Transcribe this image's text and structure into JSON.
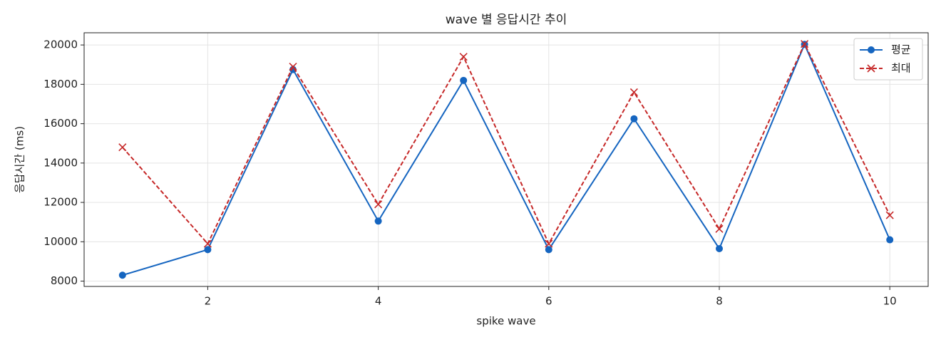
{
  "chart_data": {
    "type": "line",
    "title": "wave 별 응답시간 추이",
    "x_label": "spike wave",
    "y_label": "응답시간 (ms)",
    "x": [
      1,
      2,
      3,
      4,
      5,
      6,
      7,
      8,
      9,
      10
    ],
    "series": [
      {
        "name": "평균",
        "color": "#1565c0",
        "line_style": "solid",
        "marker": "circle",
        "values": [
          8300,
          9600,
          18750,
          11050,
          18200,
          9600,
          16250,
          9650,
          20030,
          10100
        ]
      },
      {
        "name": "최대",
        "color": "#c62828",
        "line_style": "dashed",
        "marker": "x",
        "values": [
          14800,
          9900,
          18900,
          11900,
          19400,
          9900,
          17600,
          10650,
          20050,
          11350
        ]
      }
    ],
    "xlim": [
      0.55,
      10.45
    ],
    "xticks": [
      2,
      4,
      6,
      8,
      10
    ],
    "ylim": [
      7730,
      20620
    ],
    "yticks": [
      8000,
      10000,
      12000,
      14000,
      16000,
      18000,
      20000
    ],
    "grid": true,
    "legend_position": "upper-right"
  }
}
